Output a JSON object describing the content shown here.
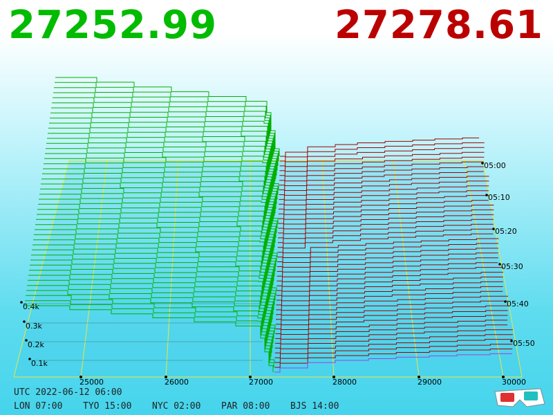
{
  "header": {
    "bid": "27252.99",
    "ask": "27278.61"
  },
  "price_axis": [
    "25000",
    "26000",
    "27000",
    "28000",
    "29000",
    "30000"
  ],
  "depth_axis": [
    "0.1k",
    "0.2k",
    "0.3k",
    "0.4k"
  ],
  "time_axis": [
    "05:00",
    "05:10",
    "05:20",
    "05:30",
    "05:40",
    "05:50"
  ],
  "footer": {
    "utc": "UTC 2022-06-12 06:00",
    "clocks": [
      "LON 07:00",
      "TYO 15:00",
      "NYC 02:00",
      "PAR 08:00",
      "BJS 14:00"
    ]
  }
}
